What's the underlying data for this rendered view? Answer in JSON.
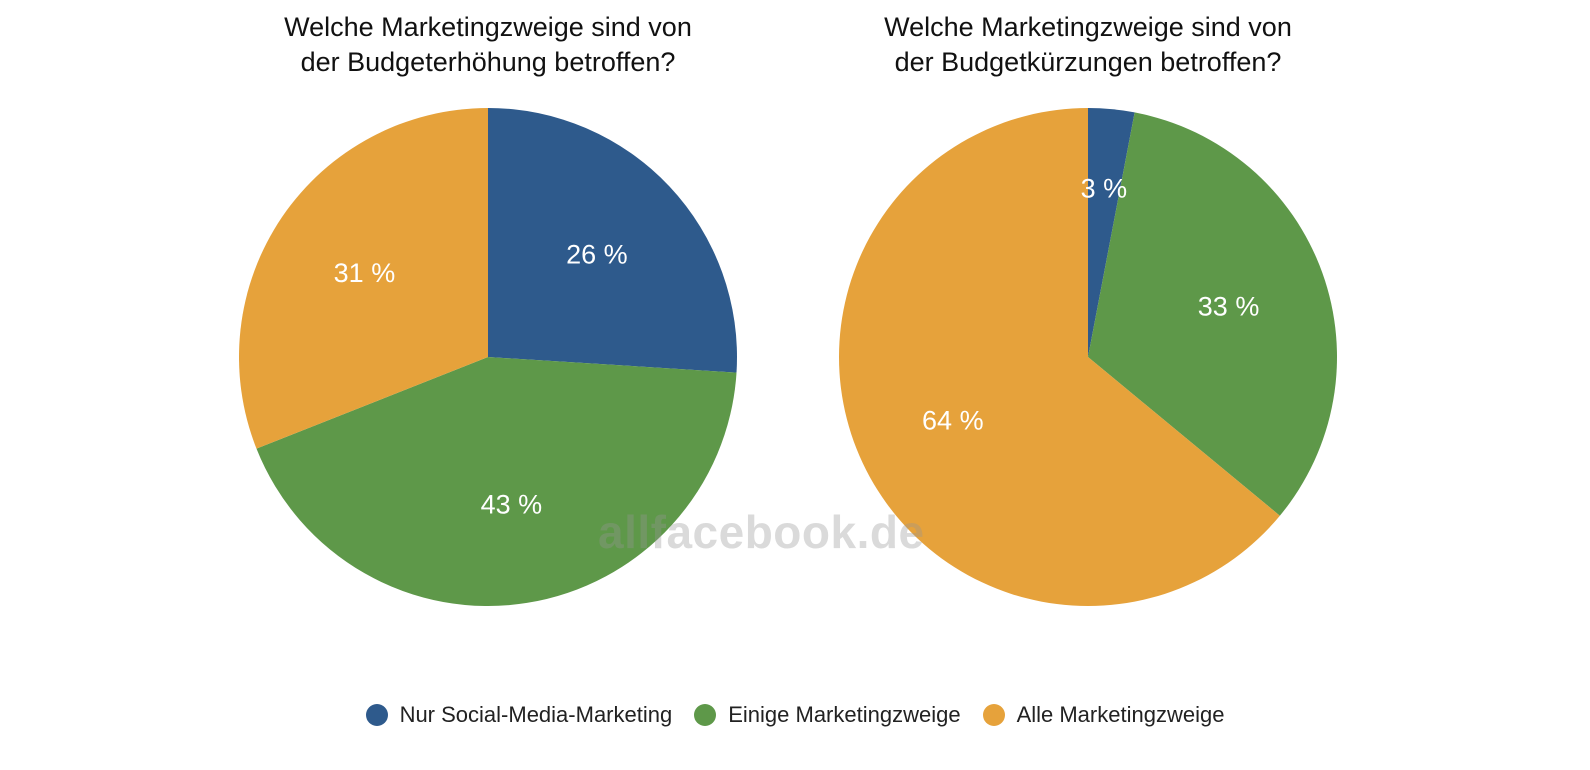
{
  "chart_data": [
    {
      "type": "pie",
      "title": "Welche Marketingzweige sind von der Budgeterhöhung betroffen?",
      "title_lines": [
        "Welche Marketingzweige sind von",
        "der Budgeterhöhung betroffen?"
      ],
      "categories": [
        "Nur Social-Media-Marketing",
        "Einige Marketingzweige",
        "Alle Marketingzweige"
      ],
      "values": [
        26,
        43,
        31
      ],
      "labels": [
        "26 %",
        "43 %",
        "31 %"
      ]
    },
    {
      "type": "pie",
      "title": "Welche Marketingzweige sind von der Budgetkürzungen betroffen?",
      "title_lines": [
        "Welche Marketingzweige sind von",
        "der Budgetkürzungen betroffen?"
      ],
      "categories": [
        "Nur Social-Media-Marketing",
        "Einige Marketingzweige",
        "Alle Marketingzweige"
      ],
      "values": [
        3,
        33,
        64
      ],
      "labels": [
        "3 %",
        "33 %",
        "64 %"
      ]
    }
  ],
  "legend": {
    "placement": "bottom",
    "items": [
      {
        "label": "Nur Social-Media-Marketing",
        "color": "#2e5a8c"
      },
      {
        "label": "Einige Marketingzweige",
        "color": "#5e9849"
      },
      {
        "label": "Alle Marketingzweige",
        "color": "#e6a23b"
      }
    ]
  },
  "colors": [
    "#2e5a8c",
    "#5e9849",
    "#e6a23b"
  ],
  "watermark": "allfacebook.de"
}
